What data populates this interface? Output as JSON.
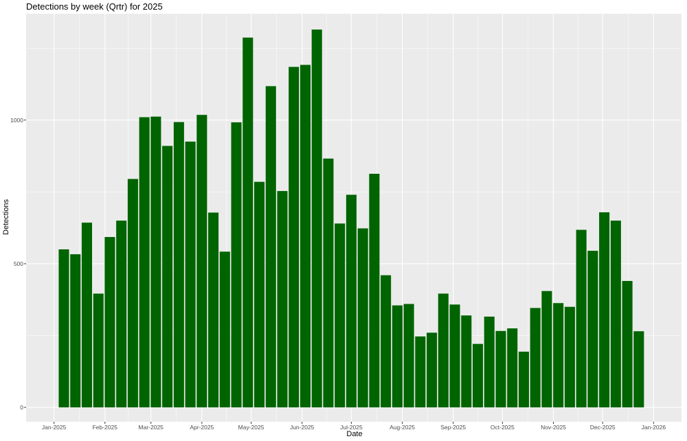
{
  "chart_data": {
    "type": "bar",
    "title": "Detections by week (Qrtr) for 2025",
    "xlabel": "Date",
    "ylabel": "Detections",
    "bar_color": "#006400",
    "panel_color": "#ebebeb",
    "grid": true,
    "ylim": [
      -50,
      1370
    ],
    "y_ticks": [
      0,
      500,
      1000
    ],
    "xlim": [
      "2024-12-15",
      "2026-01-18"
    ],
    "x_ticks": [
      {
        "date": "2025-01-01",
        "label": "Jan-2025"
      },
      {
        "date": "2025-02-01",
        "label": "Feb-2025"
      },
      {
        "date": "2025-03-01",
        "label": "Mar-2025"
      },
      {
        "date": "2025-04-01",
        "label": "Apr-2025"
      },
      {
        "date": "2025-05-01",
        "label": "May-2025"
      },
      {
        "date": "2025-06-01",
        "label": "Jun-2025"
      },
      {
        "date": "2025-07-01",
        "label": "Jul-2025"
      },
      {
        "date": "2025-08-01",
        "label": "Aug-2025"
      },
      {
        "date": "2025-09-01",
        "label": "Sep-2025"
      },
      {
        "date": "2025-10-01",
        "label": "Oct-2025"
      },
      {
        "date": "2025-11-01",
        "label": "Nov-2025"
      },
      {
        "date": "2025-12-01",
        "label": "Dec-2025"
      },
      {
        "date": "2026-01-01",
        "label": "Jan-2026"
      }
    ],
    "x": [
      "2025-01-07",
      "2025-01-14",
      "2025-01-21",
      "2025-01-28",
      "2025-02-04",
      "2025-02-11",
      "2025-02-18",
      "2025-02-25",
      "2025-03-04",
      "2025-03-11",
      "2025-03-18",
      "2025-03-25",
      "2025-04-01",
      "2025-04-08",
      "2025-04-15",
      "2025-04-22",
      "2025-04-29",
      "2025-05-06",
      "2025-05-13",
      "2025-05-20",
      "2025-05-27",
      "2025-06-03",
      "2025-06-10",
      "2025-06-17",
      "2025-06-24",
      "2025-07-01",
      "2025-07-08",
      "2025-07-15",
      "2025-07-22",
      "2025-07-29",
      "2025-08-05",
      "2025-08-12",
      "2025-08-19",
      "2025-08-26",
      "2025-09-02",
      "2025-09-09",
      "2025-09-16",
      "2025-09-23",
      "2025-09-30",
      "2025-10-07",
      "2025-10-14",
      "2025-10-21",
      "2025-10-28",
      "2025-11-04",
      "2025-11-11",
      "2025-11-18",
      "2025-11-25",
      "2025-12-02",
      "2025-12-09",
      "2025-12-16",
      "2025-12-23"
    ],
    "values": [
      550,
      533,
      643,
      396,
      593,
      650,
      795,
      1010,
      1012,
      910,
      993,
      925,
      1018,
      678,
      542,
      992,
      1287,
      785,
      1118,
      753,
      1185,
      1192,
      1315,
      866,
      640,
      740,
      623,
      813,
      460,
      355,
      360,
      247,
      260,
      396,
      358,
      320,
      221,
      316,
      266,
      275,
      194,
      346,
      405,
      363,
      350,
      618,
      545,
      679,
      650,
      440,
      265
    ]
  }
}
